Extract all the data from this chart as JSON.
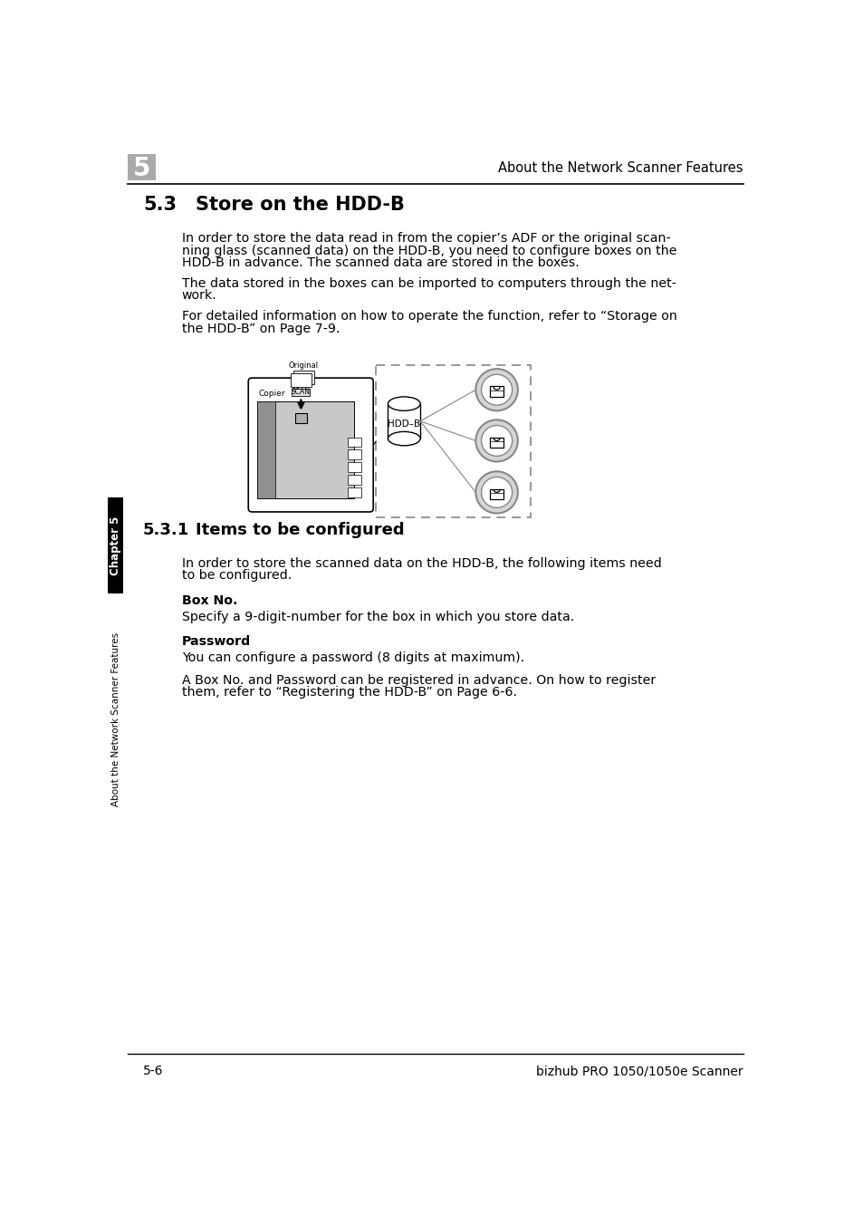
{
  "page_header_num": "5",
  "page_header_title": "About the Network Scanner Features",
  "section_num": "5.3",
  "section_title": "Store on the HDD-B",
  "para1_l1": "In order to store the data read in from the copier’s ADF or the original scan-",
  "para1_l2": "ning glass (scanned data) on the HDD-B, you need to configure boxes on the",
  "para1_l3": "HDD-B in advance. The scanned data are stored in the boxes.",
  "para2_l1": "The data stored in the boxes can be imported to computers through the net-",
  "para2_l2": "work.",
  "para3_l1": "For detailed information on how to operate the function, refer to “Storage on",
  "para3_l2": "the HDD-B” on Page 7-9.",
  "subsection_num": "5.3.1",
  "subsection_title": "Items to be configured",
  "subpara1_l1": "In order to store the scanned data on the HDD-B, the following items need",
  "subpara1_l2": "to be configured.",
  "bold1": "Box No.",
  "bold1_text": "Specify a 9-digit-number for the box in which you store data.",
  "bold2": "Password",
  "bold2_text": "You can configure a password (8 digits at maximum).",
  "bold2_text2_l1": "A Box No. and Password can be registered in advance. On how to register",
  "bold2_text2_l2": "them, refer to “Registering the HDD-B” on Page 6-6.",
  "footer_left": "5-6",
  "footer_right": "bizhub PRO 1050/1050e Scanner",
  "bg_color": "#ffffff",
  "text_color": "#000000",
  "header_box_color": "#aaaaaa",
  "sidebar_color": "#000000",
  "sidebar_text1": "Chapter 5",
  "sidebar_text2": "About the Network Scanner Features"
}
